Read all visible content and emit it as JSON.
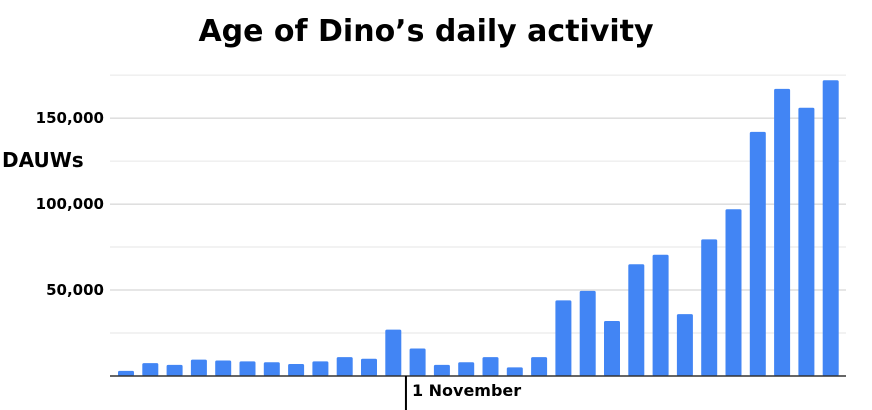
{
  "chart_data": {
    "type": "bar",
    "title": "Age of Dino’s daily activity",
    "ylabel": "DAUWs",
    "xlabel": "",
    "x_marker": {
      "label": "1 November",
      "after_bar_index": 11
    },
    "ylim": [
      0,
      175000
    ],
    "yticks": [
      {
        "value": 50000,
        "label": "50,000"
      },
      {
        "value": 100000,
        "label": "100,000"
      },
      {
        "value": 150000,
        "label": "150,000"
      }
    ],
    "minor_gridlines": [
      25000,
      75000,
      125000,
      175000
    ],
    "grid": true,
    "legend": "none",
    "bar_color": "#4285f4",
    "values": [
      3000,
      7500,
      6500,
      9500,
      9000,
      8500,
      8000,
      7000,
      8500,
      11000,
      10000,
      27000,
      16000,
      6500,
      8000,
      11000,
      5000,
      11000,
      44000,
      49500,
      32000,
      65000,
      70500,
      36000,
      79500,
      97000,
      142000,
      167000,
      156000,
      172000
    ]
  }
}
